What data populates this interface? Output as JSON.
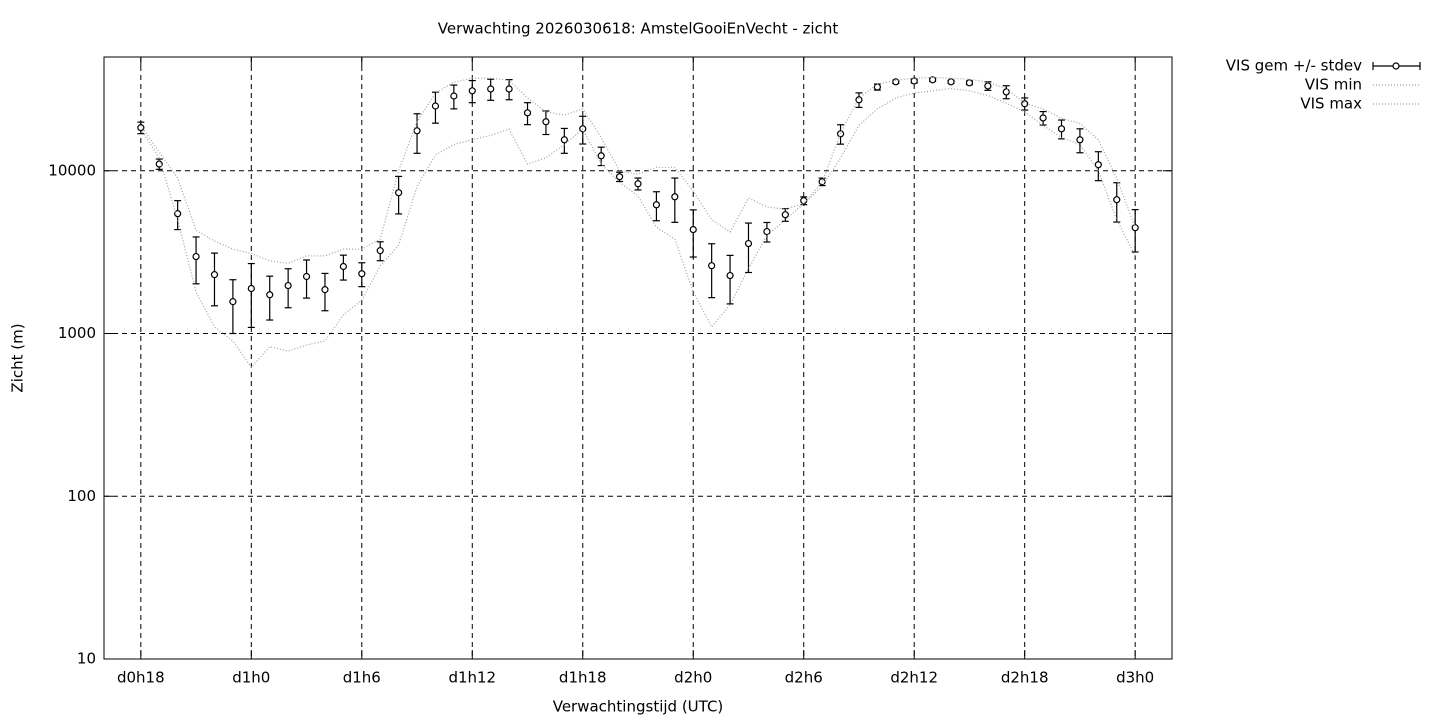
{
  "chart_data": {
    "type": "line",
    "title": "Verwachting 2026030618: AmstelGooiEnVecht - zicht",
    "x_label": "Verwachtingstijd (UTC)",
    "y_label": "Zicht (m)",
    "log_y": true,
    "grid": true,
    "legend": "outside-top-right",
    "xlim": [
      16,
      74
    ],
    "xticks": [
      {
        "value": 18,
        "label": "d0h18"
      },
      {
        "value": 24,
        "label": "d1h0"
      },
      {
        "value": 30,
        "label": "d1h6"
      },
      {
        "value": 36,
        "label": "d1h12"
      },
      {
        "value": 42,
        "label": "d1h18"
      },
      {
        "value": 48,
        "label": "d2h0"
      },
      {
        "value": 54,
        "label": "d2h6"
      },
      {
        "value": 60,
        "label": "d2h12"
      },
      {
        "value": 66,
        "label": "d2h18"
      },
      {
        "value": 72,
        "label": "d3h0"
      }
    ],
    "ylim": [
      10,
      50000
    ],
    "yticks": [
      10,
      100,
      1000,
      10000
    ],
    "x": [
      18,
      19,
      20,
      21,
      22,
      23,
      24,
      25,
      26,
      27,
      28,
      29,
      30,
      31,
      32,
      33,
      34,
      35,
      36,
      37,
      38,
      39,
      40,
      41,
      42,
      43,
      44,
      45,
      46,
      47,
      48,
      49,
      50,
      51,
      52,
      53,
      54,
      55,
      56,
      57,
      58,
      59,
      60,
      61,
      62,
      63,
      64,
      65,
      66,
      67,
      68,
      69,
      70,
      71,
      72
    ],
    "series": [
      {
        "name": "VIS gem +/- stdev",
        "color": "#000000",
        "values": [
          18400,
          11000,
          5450,
          2970,
          2300,
          1570,
          1890,
          1730,
          1970,
          2240,
          1860,
          2580,
          2330,
          3230,
          7330,
          17600,
          25000,
          28800,
          31000,
          31800,
          31800,
          22700,
          20000,
          15500,
          18100,
          12360,
          9190,
          8320,
          6180,
          6920,
          4350,
          2610,
          2270,
          3570,
          4230,
          5370,
          6550,
          8560,
          16870,
          27300,
          32700,
          35200,
          35600,
          36200,
          35200,
          34700,
          33200,
          30500,
          25800,
          21100,
          18100,
          15500,
          10890,
          6640,
          4470
        ],
        "errors": [
          1500,
          800,
          1100,
          950,
          820,
          570,
          800,
          520,
          530,
          590,
          480,
          450,
          390,
          430,
          1900,
          4800,
          5400,
          4800,
          4800,
          4700,
          4500,
          3500,
          3300,
          2700,
          3500,
          1600,
          600,
          700,
          1250,
          2100,
          1400,
          950,
          750,
          1200,
          580,
          480,
          360,
          450,
          2300,
          2800,
          1400,
          800,
          1000,
          800,
          700,
          900,
          2000,
          2800,
          2200,
          2000,
          2400,
          2600,
          2200,
          1800,
          1300
        ]
      },
      {
        "name": "VIS min",
        "color": "#a0a0a0",
        "values": [
          18000,
          12000,
          5000,
          1800,
          1100,
          900,
          620,
          830,
          780,
          850,
          900,
          1300,
          1600,
          2600,
          3500,
          8000,
          12500,
          14500,
          15500,
          16500,
          18000,
          11000,
          12000,
          14500,
          18000,
          11000,
          8500,
          7000,
          4500,
          3800,
          1800,
          1100,
          1500,
          2500,
          4000,
          5000,
          6300,
          8000,
          12000,
          19000,
          24000,
          28000,
          30000,
          31000,
          32000,
          31000,
          29000,
          26000,
          23000,
          19000,
          16000,
          14500,
          10000,
          5000,
          3000
        ]
      },
      {
        "name": "VIS max",
        "color": "#a0a0a0",
        "values": [
          19000,
          13000,
          9000,
          4300,
          3700,
          3300,
          3100,
          2800,
          2700,
          3000,
          3000,
          3300,
          3300,
          3800,
          10000,
          20000,
          30000,
          35000,
          37000,
          37000,
          36000,
          28000,
          23000,
          22000,
          24000,
          16000,
          10000,
          9500,
          10500,
          10500,
          7500,
          5000,
          4200,
          6800,
          6000,
          5800,
          6300,
          8500,
          17000,
          28000,
          34000,
          36000,
          37000,
          37500,
          37000,
          36500,
          35000,
          32000,
          26000,
          24000,
          21000,
          19500,
          15500,
          9000,
          4500
        ]
      }
    ]
  }
}
